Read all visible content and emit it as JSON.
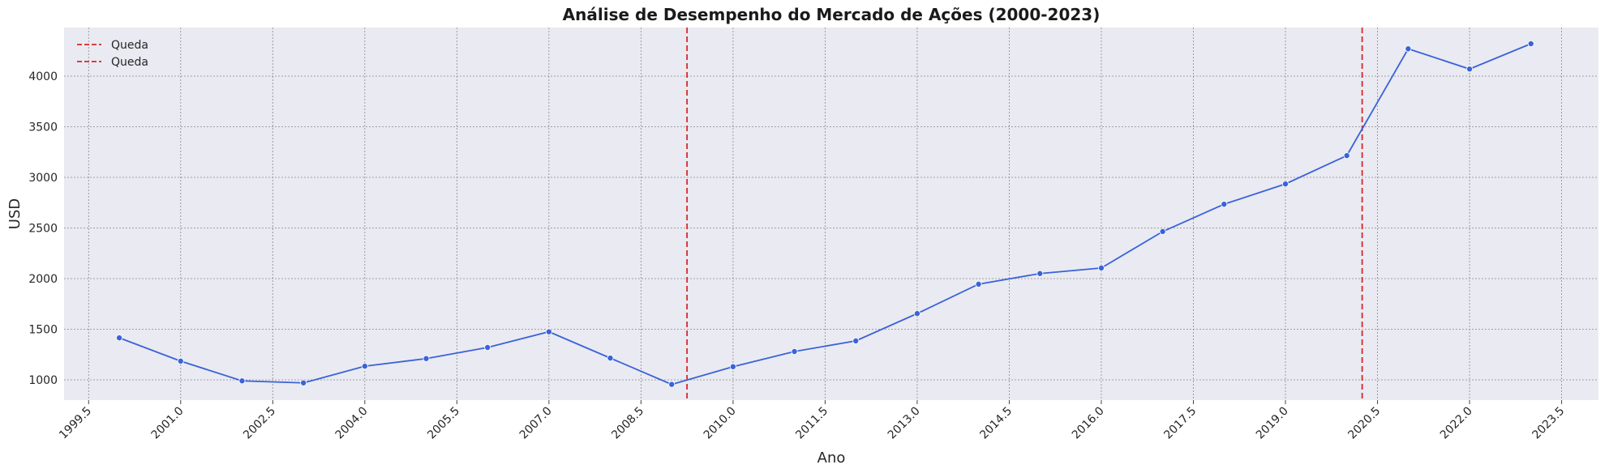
{
  "chart_data": {
    "type": "line",
    "title": "Análise de Desempenho do Mercado de Ações (2000-2023)",
    "xlabel": "Ano",
    "ylabel": "USD",
    "xlim": [
      1999.1,
      2024.1
    ],
    "ylim": [
      800,
      4480
    ],
    "x_ticks": [
      1999.5,
      2001.0,
      2002.5,
      2004.0,
      2005.5,
      2007.0,
      2008.5,
      2010.0,
      2011.5,
      2013.0,
      2014.5,
      2016.0,
      2017.5,
      2019.0,
      2020.5,
      2022.0,
      2023.5
    ],
    "x_tick_labels": [
      "1999.5",
      "2001.0",
      "2002.5",
      "2004.0",
      "2005.5",
      "2007.0",
      "2008.5",
      "2010.0",
      "2011.5",
      "2013.0",
      "2014.5",
      "2016.0",
      "2017.5",
      "2019.0",
      "2020.5",
      "2022.0",
      "2023.5"
    ],
    "y_ticks": [
      1000,
      1500,
      2000,
      2500,
      3000,
      3500,
      4000
    ],
    "y_tick_labels": [
      "1000",
      "1500",
      "2000",
      "2500",
      "3000",
      "3500",
      "4000"
    ],
    "grid": true,
    "legend_position": "top-left",
    "series": [
      {
        "color": "#3a63d8",
        "x": [
          2000,
          2001,
          2002,
          2003,
          2004,
          2005,
          2006,
          2007,
          2008,
          2009,
          2010,
          2011,
          2012,
          2013,
          2014,
          2015,
          2016,
          2017,
          2018,
          2019,
          2020,
          2021,
          2022,
          2023
        ],
        "values": [
          1415,
          1185,
          990,
          970,
          1135,
          1210,
          1320,
          1475,
          1215,
          955,
          1130,
          1280,
          1385,
          1655,
          1945,
          2050,
          2105,
          2465,
          2735,
          2935,
          3215,
          4270,
          4070,
          4320
        ]
      }
    ],
    "vlines": [
      {
        "x": 2009.25,
        "color": "#d62728",
        "label": "Queda"
      },
      {
        "x": 2020.25,
        "color": "#d62728",
        "label": "Queda"
      }
    ]
  }
}
